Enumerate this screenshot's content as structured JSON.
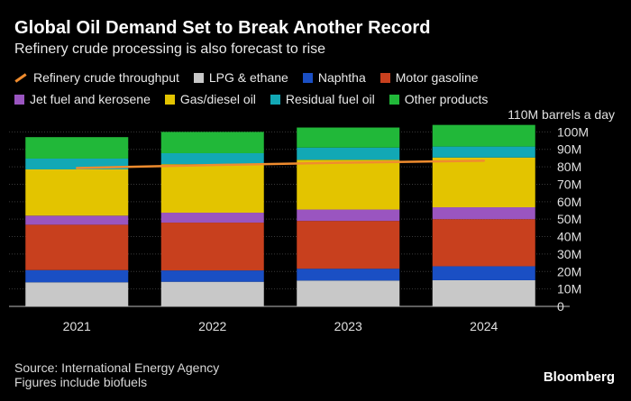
{
  "header": {
    "title": "Global Oil Demand Set to Break Another Record",
    "subtitle": "Refinery crude processing is also forecast to rise"
  },
  "footer": {
    "source": "Source: International Energy Agency",
    "note": "Figures include biofuels",
    "brand": "Bloomberg"
  },
  "chart_data": {
    "type": "bar",
    "stacked": true,
    "categories": [
      "2021",
      "2022",
      "2023",
      "2024"
    ],
    "unit_label": "110M barrels a day",
    "ylim": [
      0,
      110
    ],
    "yticks": [
      {
        "value": 0,
        "label": "0"
      },
      {
        "value": 10,
        "label": "10M"
      },
      {
        "value": 20,
        "label": "20M"
      },
      {
        "value": 30,
        "label": "30M"
      },
      {
        "value": 40,
        "label": "40M"
      },
      {
        "value": 50,
        "label": "50M"
      },
      {
        "value": 60,
        "label": "60M"
      },
      {
        "value": 70,
        "label": "70M"
      },
      {
        "value": 80,
        "label": "80M"
      },
      {
        "value": 90,
        "label": "90M"
      },
      {
        "value": 100,
        "label": "100M"
      }
    ],
    "series": [
      {
        "name": "LPG & ethane",
        "color": "#c8c8c8",
        "values": [
          13.8,
          14.1,
          14.8,
          15.0
        ]
      },
      {
        "name": "Naphtha",
        "color": "#1a4fc4",
        "values": [
          7.0,
          6.5,
          6.8,
          8.0
        ]
      },
      {
        "name": "Motor gasoline",
        "color": "#c8401e",
        "values": [
          26.0,
          27.4,
          27.4,
          27.0
        ]
      },
      {
        "name": "Jet fuel and kerosene",
        "color": "#9a55c0",
        "values": [
          5.2,
          5.7,
          6.5,
          6.8
        ]
      },
      {
        "name": "Gas/diesel oil",
        "color": "#e3c400",
        "values": [
          26.5,
          27.8,
          28.5,
          28.5
        ]
      },
      {
        "name": "Residual fuel oil",
        "color": "#12a8b5",
        "values": [
          6.2,
          6.3,
          7.0,
          6.3
        ]
      },
      {
        "name": "Other products",
        "color": "#21b839",
        "values": [
          12.3,
          12.2,
          11.5,
          12.4
        ]
      }
    ],
    "line": {
      "name": "Refinery crude throughput",
      "color": "#f08c2e",
      "values": [
        79.3,
        81.0,
        82.4,
        83.5
      ]
    },
    "legend": [
      {
        "name": "Refinery crude throughput",
        "kind": "line",
        "color": "#f08c2e"
      },
      {
        "name": "LPG & ethane",
        "kind": "box",
        "color": "#c8c8c8"
      },
      {
        "name": "Naphtha",
        "kind": "box",
        "color": "#1a4fc4"
      },
      {
        "name": "Motor gasoline",
        "kind": "box",
        "color": "#c8401e"
      },
      {
        "name": "Jet fuel and kerosene",
        "kind": "box",
        "color": "#9a55c0"
      },
      {
        "name": "Gas/diesel oil",
        "kind": "box",
        "color": "#e3c400"
      },
      {
        "name": "Residual fuel oil",
        "kind": "box",
        "color": "#12a8b5"
      },
      {
        "name": "Other products",
        "kind": "box",
        "color": "#21b839"
      }
    ]
  }
}
